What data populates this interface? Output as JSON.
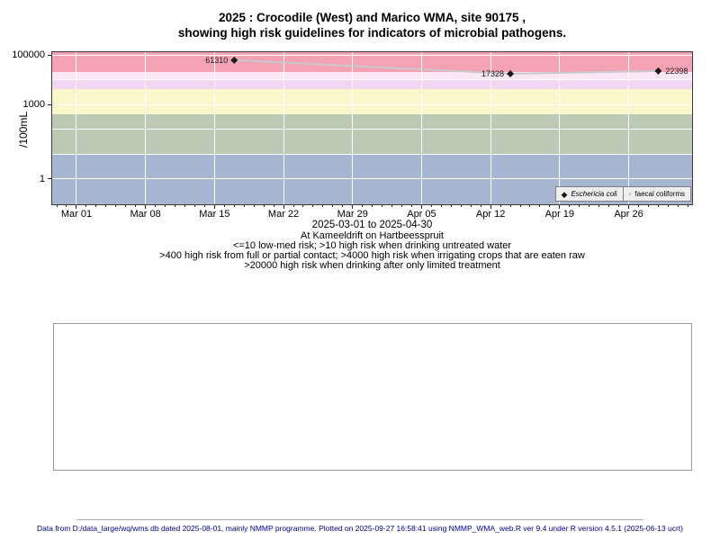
{
  "title": {
    "line1": "2025 : Crocodile (West) and Marico WMA, site 90175 ,",
    "line2": "showing high risk guidelines for indicators of microbial pathogens."
  },
  "y_axis": {
    "label": "/100mL"
  },
  "subtitle": {
    "x_title": "2025-03-01 to 2025-04-30",
    "location": "At Kameeldrift on Hartbeesspruit",
    "guideline1": "<=10 low-med risk; >10 high risk when drinking untreated water",
    "guideline2": ">400 high risk from full or partial contact; >4000 high risk when irrigating crops that are eaten raw",
    "guideline3": ">20000 high risk when drinking after only limited treatment"
  },
  "legend": [
    {
      "marker": "filled-diamond",
      "label": "Eschericia coli",
      "italic": true
    },
    {
      "marker": "open-circle",
      "label": "faecal coliforms",
      "italic": false
    }
  ],
  "footer": "Data from D:/data_large/wq/wms.db dated 2025-08-01, mainly NMMP programme. Plotted on 2025-09-27 16:58:41 using NMMP_WMA_web.R ver 9.4 under R version 4.5.1 (2025-06-13 ucrt)",
  "chart_data": {
    "type": "line",
    "title": "2025 : Crocodile (West) and Marico WMA, site 90175 , showing high risk guidelines for indicators of microbial pathogens.",
    "xlabel": "2025-03-01 to 2025-04-30",
    "ylabel": "/100mL",
    "y_scale": "log10",
    "ylim": [
      0.092,
      128600
    ],
    "x_epoch": "2025-03-01",
    "xlim_days": [
      -2.46,
      62.43
    ],
    "grid": true,
    "legend_position": "bottom-right",
    "y_ticks": [
      {
        "value": 100000,
        "label": "100000"
      },
      {
        "value": 1000,
        "label": "1000"
      },
      {
        "value": 1,
        "label": "1"
      }
    ],
    "y_gridline_values": [
      100000,
      10000,
      1000,
      100,
      10,
      1
    ],
    "x_ticks": [
      {
        "label": "Mar 01",
        "day": 0
      },
      {
        "label": "Mar 08",
        "day": 7
      },
      {
        "label": "Mar 15",
        "day": 14
      },
      {
        "label": "Mar 22",
        "day": 21
      },
      {
        "label": "Mar 29",
        "day": 28
      },
      {
        "label": "Apr 05",
        "day": 35
      },
      {
        "label": "Apr 12",
        "day": 42
      },
      {
        "label": "Apr 19",
        "day": 49
      },
      {
        "label": "Apr 26",
        "day": 56
      }
    ],
    "minor_tick_days": {
      "from": -2,
      "to": 62,
      "step": 1
    },
    "risk_bands": [
      {
        "name": "high-risk-limited-treatment",
        "lo": 20000,
        "hi": 128600,
        "color": "#f5a3b4"
      },
      {
        "name": "risk-upper-pale",
        "lo": 10000,
        "hi": 20000,
        "color": "#fbe6f4"
      },
      {
        "name": "high-risk-irrigation",
        "lo": 4000,
        "hi": 10000,
        "color": "#f3d6f2"
      },
      {
        "name": "high-risk-contact",
        "lo": 400,
        "hi": 4000,
        "color": "#fbf7cc"
      },
      {
        "name": "high-risk-untreated-water",
        "lo": 10,
        "hi": 400,
        "color": "#bcc9b4"
      },
      {
        "name": "low-med-risk",
        "lo": 0.092,
        "hi": 10,
        "color": "#a7b6d0"
      }
    ],
    "series": [
      {
        "name": "Eschericia coli",
        "marker": "filled-diamond",
        "marker_color": "#1a1a1a",
        "line_color": "#c9c9c9",
        "points": [
          {
            "date": "2025-03-17",
            "day": 16,
            "value": 61310,
            "label": "61310",
            "label_side": "left"
          },
          {
            "date": "2025-04-14",
            "day": 44,
            "value": 17328,
            "label": "17328",
            "label_side": "left"
          },
          {
            "date": "2025-04-29",
            "day": 59,
            "value": 22398,
            "label": "22398",
            "label_side": "right"
          }
        ]
      },
      {
        "name": "faecal coliforms",
        "marker": "open-circle",
        "points": []
      }
    ]
  }
}
